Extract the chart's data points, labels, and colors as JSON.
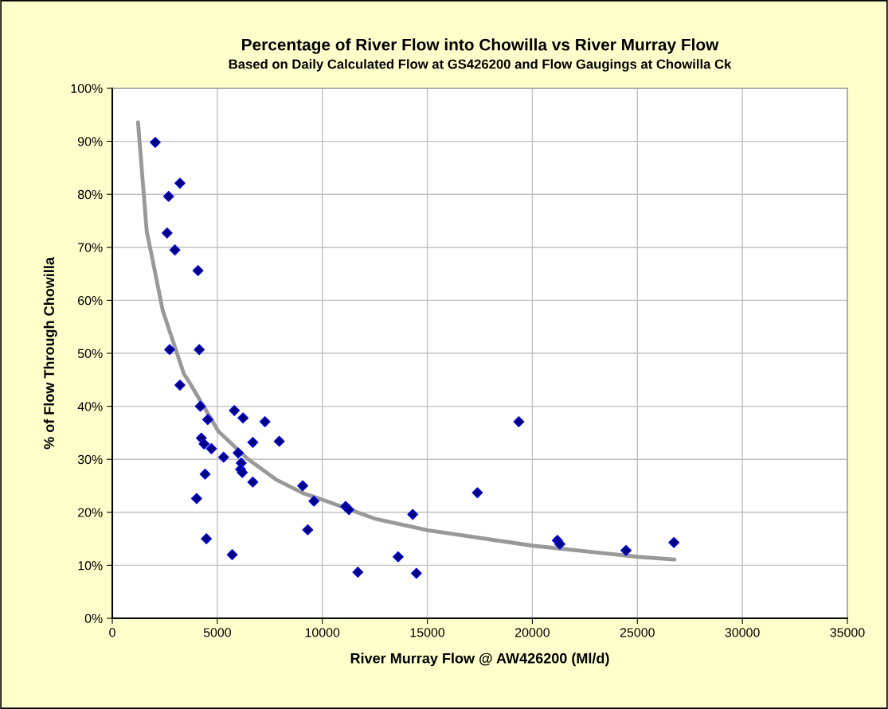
{
  "chart_data": {
    "type": "scatter",
    "title": "Percentage of River Flow into Chowilla vs River Murray Flow",
    "subtitle": "Based on Daily Calculated Flow at GS426200 and Flow Gaugings at Chowilla Ck",
    "xlabel": "River Murray Flow @ AW426200 (Ml/d)",
    "ylabel": "% of Flow Through Chowilla",
    "series": [
      {
        "color": "#000080",
        "marker": "diamond",
        "x": [
          2045,
          3220,
          2680,
          2610,
          2980,
          4080,
          2730,
          4140,
          3220,
          4190,
          4545,
          5810,
          6225,
          7270,
          4240,
          4370,
          4720,
          5300,
          6690,
          7950,
          5995,
          6140,
          6110,
          6190,
          4420,
          6690,
          4015,
          9065,
          9600,
          9305,
          4480,
          5710,
          11110,
          11265,
          11690,
          13610,
          14305,
          14480,
          17385,
          19355,
          21190,
          21310,
          24460,
          26740
        ],
        "values": [
          89.8,
          82.1,
          79.6,
          72.7,
          69.5,
          65.6,
          50.7,
          50.7,
          44.0,
          40.0,
          37.5,
          39.2,
          37.8,
          37.1,
          34.0,
          32.9,
          32.0,
          30.4,
          33.2,
          33.4,
          31.2,
          29.3,
          28.1,
          27.5,
          27.2,
          25.7,
          22.6,
          25.0,
          22.1,
          16.7,
          15.0,
          12.0,
          21.1,
          20.5,
          8.7,
          11.6,
          19.6,
          8.5,
          23.7,
          37.1,
          14.7,
          14.0,
          12.8,
          14.3
        ]
      },
      {
        "type": "line",
        "color": "#999999",
        "marker": "none",
        "line_style": "solid",
        "x": [
          1225,
          1640,
          1895,
          2400,
          3410,
          3660,
          5050,
          6440,
          7830,
          9090,
          9850,
          12500,
          15025,
          20010,
          25010,
          26770
        ],
        "values": [
          93.6,
          73.0,
          68.1,
          58.1,
          46.1,
          44.6,
          35.3,
          30.1,
          26.1,
          23.6,
          22.6,
          18.8,
          16.6,
          13.7,
          11.6,
          11.1
        ]
      }
    ],
    "xlim": [
      0,
      35000
    ],
    "xticks": [
      0,
      5000,
      10000,
      15000,
      20000,
      25000,
      30000,
      35000
    ],
    "ylim": [
      0,
      100
    ],
    "yticks": [
      {
        "value": 0,
        "label": "0%"
      },
      {
        "value": 10,
        "label": "10%"
      },
      {
        "value": 20,
        "label": "20%"
      },
      {
        "value": 30,
        "label": "30%"
      },
      {
        "value": 40,
        "label": "40%"
      },
      {
        "value": 50,
        "label": "50%"
      },
      {
        "value": 60,
        "label": "60%"
      },
      {
        "value": 70,
        "label": "70%"
      },
      {
        "value": 80,
        "label": "80%"
      },
      {
        "value": 90,
        "label": "90%"
      },
      {
        "value": 100,
        "label": "100%"
      }
    ],
    "grid": true,
    "legend": false
  }
}
